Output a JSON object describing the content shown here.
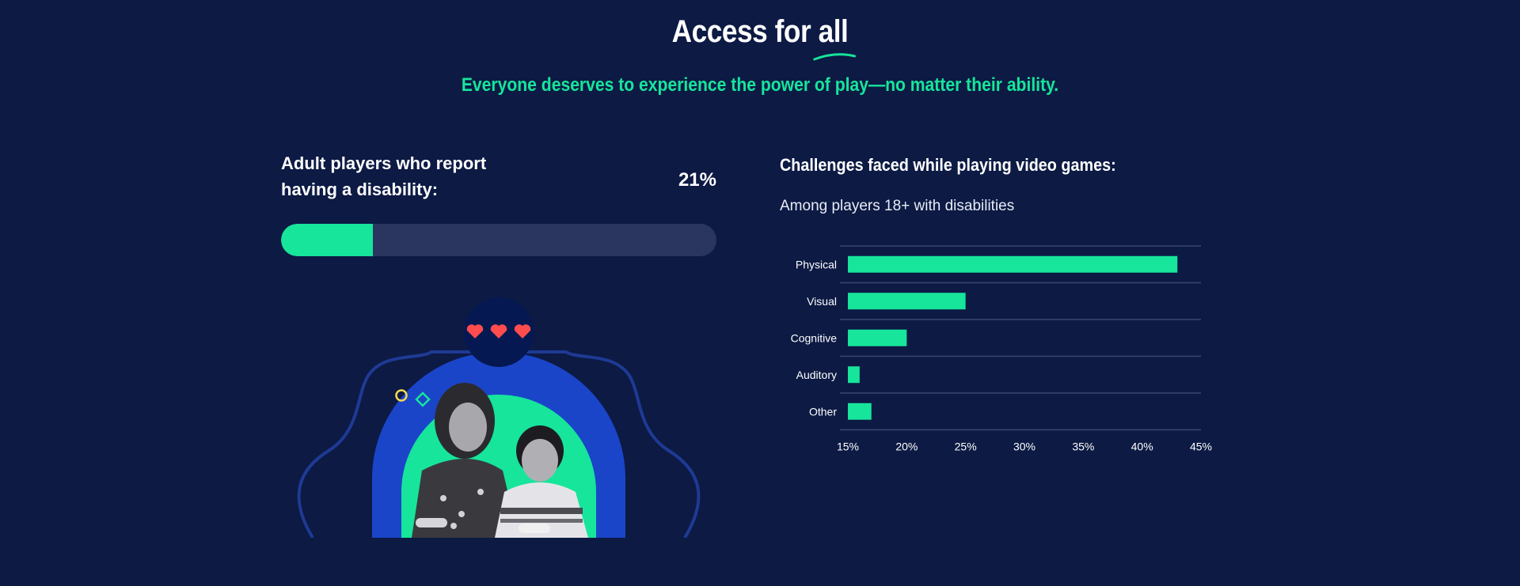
{
  "header": {
    "title_prefix": "Access for",
    "title_emphasis": "all",
    "subtitle": "Everyone deserves to experience the power of play—no matter their ability."
  },
  "stat": {
    "label": "Adult players who report having a disability:",
    "value": "21%",
    "fraction": 0.21
  },
  "colors": {
    "background": "#0c1a44",
    "accent": "#16e59b",
    "track": "#2a3660",
    "arch": "#1a45c9",
    "heart": "#ff4d4d"
  },
  "chart_data": {
    "type": "bar",
    "orientation": "horizontal",
    "title": "Challenges faced while playing video games:",
    "subtitle": "Among players 18+ with disabilities",
    "categories": [
      "Physical",
      "Visual",
      "Cognitive",
      "Auditory",
      "Other"
    ],
    "values": [
      43,
      25,
      20,
      16,
      17
    ],
    "xlim": [
      15,
      45
    ],
    "xticks": [
      "15%",
      "20%",
      "25%",
      "30%",
      "35%",
      "40%",
      "45%"
    ],
    "bar_color": "#16e59b",
    "grid": true
  }
}
